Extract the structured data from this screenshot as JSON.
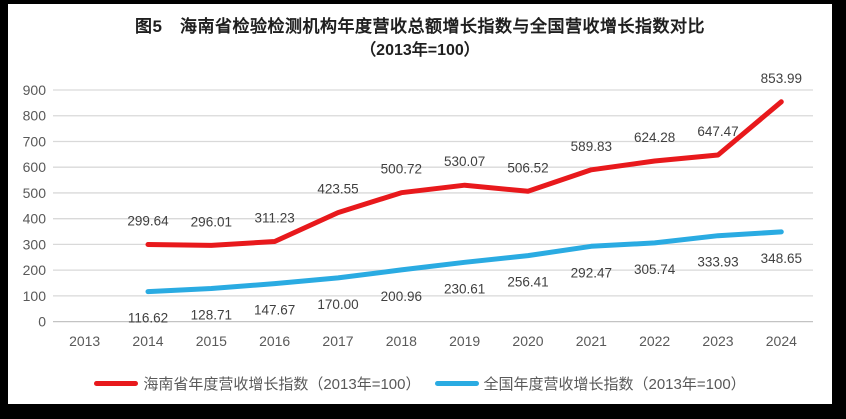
{
  "figure": {
    "title_line1": "图5　海南省检验检测机构年度营收总额增长指数与全国营收增长指数对比",
    "title_line2": "（2013年=100）"
  },
  "colors": {
    "hainan_red": "#e8191c",
    "national_blue": "#2aabe2",
    "gridline": "#d9d9d9",
    "axis_line": "#c3c3c3",
    "axis_text": "#595959",
    "data_label_text": "#404040",
    "title_text": "#1f1f1f",
    "frame": "#000000",
    "background": "#ffffff"
  },
  "chart_data": {
    "type": "line",
    "title": "图5　海南省检验检测机构年度营收总额增长指数与全国营收增长指数对比（2013年=100）",
    "categories": [
      "2013",
      "2014",
      "2015",
      "2016",
      "2017",
      "2018",
      "2019",
      "2020",
      "2021",
      "2022",
      "2023",
      "2024"
    ],
    "series": [
      {
        "name": "海南省年度营收增长指数（2013年=100）",
        "color": "#e8191c",
        "label_position": "above",
        "values": [
          null,
          299.64,
          296.01,
          311.23,
          423.55,
          500.72,
          530.07,
          506.52,
          589.83,
          624.28,
          647.47,
          853.99
        ],
        "labels": [
          "",
          "299.64",
          "296.01",
          "311.23",
          "423.55",
          "500.72",
          "530.07",
          "506.52",
          "589.83",
          "624.28",
          "647.47",
          "853.99"
        ]
      },
      {
        "name": "全国年度营收增长指数（2013年=100）",
        "color": "#2aabe2",
        "label_position": "below",
        "values": [
          null,
          116.62,
          128.71,
          147.67,
          170.0,
          200.96,
          230.61,
          256.41,
          292.47,
          305.74,
          333.93,
          348.65
        ],
        "labels": [
          "",
          "116.62",
          "128.71",
          "147.67",
          "170.00",
          "200.96",
          "230.61",
          "256.41",
          "292.47",
          "305.74",
          "333.93",
          "348.65"
        ]
      }
    ],
    "ylim": [
      0,
      900
    ],
    "yticks": [
      "0",
      "100",
      "200",
      "300",
      "400",
      "500",
      "600",
      "700",
      "800",
      "900"
    ],
    "grid": "horizontal",
    "legend_position": "bottom"
  }
}
